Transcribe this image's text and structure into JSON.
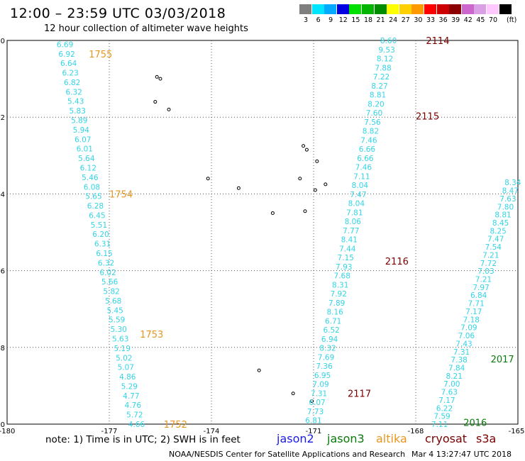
{
  "header": {
    "title": "12:00 – 23:59 UTC 03/03/2018",
    "subtitle": "12 hour collection of altimeter wave heights"
  },
  "legend": {
    "unit": "(ft)",
    "bins": [
      {
        "color": "#7f7f7f",
        "label": "3"
      },
      {
        "color": "#00e5ff",
        "label": "6"
      },
      {
        "color": "#00aaff",
        "label": "9"
      },
      {
        "color": "#0000e0",
        "label": "12"
      },
      {
        "color": "#00e000",
        "label": "15"
      },
      {
        "color": "#00b400",
        "label": "18"
      },
      {
        "color": "#008c00",
        "label": "21"
      },
      {
        "color": "#ffff00",
        "label": "24"
      },
      {
        "color": "#ffd000",
        "label": "27"
      },
      {
        "color": "#ff9900",
        "label": "30"
      },
      {
        "color": "#ff0000",
        "label": "33"
      },
      {
        "color": "#cc0000",
        "label": "36"
      },
      {
        "color": "#8b0000",
        "label": "39"
      },
      {
        "color": "#cc66cc",
        "label": "42"
      },
      {
        "color": "#d9a0e6",
        "label": "45"
      },
      {
        "color": "#ffc8ff",
        "label": "70"
      },
      {
        "color": "#000000",
        "label": ""
      }
    ]
  },
  "map": {
    "x_ticks": [
      "-180",
      "-177",
      "-174",
      "-171",
      "-168",
      "-165"
    ],
    "y_ticks": [
      "0",
      "-2",
      "-4",
      "-6",
      "-8",
      "-10"
    ],
    "x_range": [
      -180,
      -165
    ],
    "y_range": [
      -10,
      0
    ]
  },
  "colors": {
    "wave_text": "#33d4e6",
    "label_altika": "#e8961e",
    "label_cryosat": "#7a0000",
    "label_jason3": "#0a7a0a",
    "label_jason2": "#1a1ae6"
  },
  "tracks": [
    {
      "name": "track-1755-1752",
      "color_key": "label_altika",
      "start": [
        -178.3,
        -0.1
      ],
      "end": [
        -176.2,
        -10.0
      ],
      "heights": [
        "6.69",
        "6.92",
        "6.64",
        "6.23",
        "6.82",
        "6.32",
        "5.43",
        "5.83",
        "5.89",
        "5.94",
        "6.07",
        "6.01",
        "5.64",
        "6.12",
        "5.46",
        "6.08",
        "5.65",
        "6.28",
        "6.45",
        "5.51",
        "6.20",
        "6.31",
        "6.15",
        "6.32",
        "6.02",
        "5.66",
        "5.82",
        "5.68",
        "5.45",
        "5.59",
        "5.30",
        "5.63",
        "5.19",
        "5.02",
        "5.07",
        "4.86",
        "5.29",
        "4.77",
        "4.76",
        "5.72",
        "4.66"
      ],
      "labels": [
        {
          "text": "1755",
          "lon": -177.6,
          "lat": -0.35
        },
        {
          "text": "1754",
          "lon": -177.0,
          "lat": -4.0
        },
        {
          "text": "1753",
          "lon": -176.1,
          "lat": -7.65
        },
        {
          "text": "1752",
          "lon": -175.4,
          "lat": -10.0
        }
      ]
    },
    {
      "name": "track-2114-2117",
      "color_key": "label_cryosat",
      "start": [
        -168.8,
        0.0
      ],
      "end": [
        -171.0,
        -9.9
      ],
      "heights": [
        "8.60",
        "9.53",
        "8.12",
        "7.88",
        "7.22",
        "8.27",
        "8.81",
        "8.20",
        "7.60",
        "7.56",
        "8.82",
        "7.46",
        "6.66",
        "6.66",
        "7.46",
        "7.11",
        "8.04",
        "7.47",
        "8.04",
        "7.81",
        "8.06",
        "7.77",
        "8.41",
        "7.44",
        "7.15",
        "7.93",
        "7.68",
        "8.31",
        "7.92",
        "7.89",
        "8.16",
        "6.71",
        "6.52",
        "6.94",
        "8.32",
        "7.69",
        "7.36",
        "6.95",
        "7.09",
        "7.31",
        "6.07",
        "7.73",
        "6.81"
      ],
      "labels": [
        {
          "text": "2114",
          "lon": -167.7,
          "lat": 0.0
        },
        {
          "text": "2115",
          "lon": -168.0,
          "lat": -1.97
        },
        {
          "text": "2116",
          "lon": -168.9,
          "lat": -5.75
        },
        {
          "text": "2117",
          "lon": -170.0,
          "lat": -9.2
        }
      ]
    },
    {
      "name": "track-2017-2016",
      "color_key": "label_jason3",
      "start": [
        -165.15,
        -3.7
      ],
      "end": [
        -167.3,
        -10.0
      ],
      "heights": [
        "8.34",
        "8.47",
        "7.63",
        "7.80",
        "8.81",
        "8.45",
        "8.25",
        "7.47",
        "7.54",
        "7.21",
        "7.72",
        "7.03",
        "7.21",
        "7.97",
        "6.84",
        "7.71",
        "7.17",
        "7.18",
        "7.09",
        "7.06",
        "7.43",
        "7.31",
        "7.38",
        "7.84",
        "8.21",
        "7.00",
        "7.63",
        "7.17",
        "6.22",
        "7.59",
        "7.11"
      ],
      "labels": [
        {
          "text": "2017",
          "lon": -165.8,
          "lat": -8.3
        },
        {
          "text": "2016",
          "lon": -166.6,
          "lat": -9.95
        }
      ]
    }
  ],
  "footer": {
    "note": "note: 1) Time is in UTC; 2) SWH is in feet",
    "satellites": [
      {
        "name": "jason2",
        "color_key": "label_jason2"
      },
      {
        "name": "jason3",
        "color_key": "label_jason3"
      },
      {
        "name": "altika",
        "color_key": "label_altika"
      },
      {
        "name": "cryosat",
        "color_key": "label_cryosat"
      },
      {
        "name": "s3a",
        "color_key": "label_cryosat"
      }
    ],
    "credit": "NOAA/NESDIS Center for Satellite Applications and Research",
    "timestamp": "Mar  4 13:27:47 UTC 2018"
  }
}
